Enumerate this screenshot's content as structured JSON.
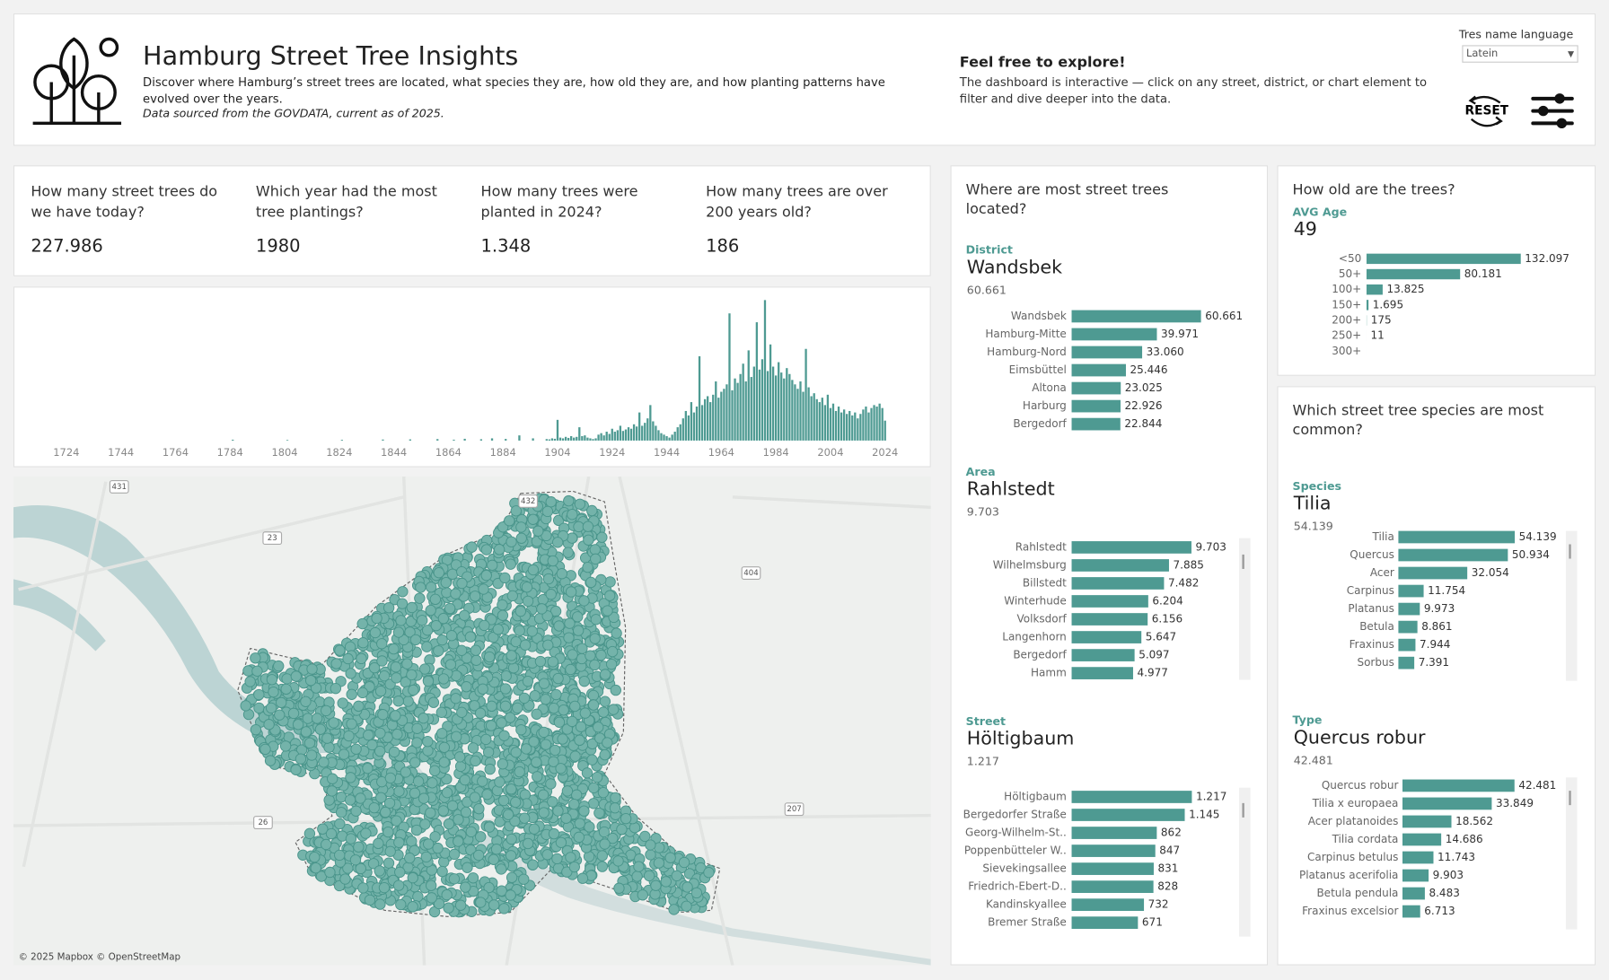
{
  "header": {
    "title": "Hamburg Street Tree Insights",
    "description": "Discover where Hamburg’s street trees are located, what species they are, how old they are, and how planting patterns have evolved over the years.",
    "source": "Data sourced from the GOVDATA, current as of 2025.",
    "explore_title": "Feel free to explore!",
    "explore_text": "The dashboard is interactive — click on any street, district, or chart element to filter and dive deeper into the data.",
    "language_label": "Tres name language",
    "language_value": "Latein",
    "reset_label": "RESET"
  },
  "kpis": [
    {
      "question": "How many street trees do we have today?",
      "value": "227.986"
    },
    {
      "question": "Which year had the most tree plantings?",
      "value": "1980"
    },
    {
      "question": "How many trees were planted in 2024?",
      "value": "1.348"
    },
    {
      "question": "How many trees are over 200 years old?",
      "value": "186"
    }
  ],
  "map": {
    "attribution": "© 2025 Mapbox © OpenStreetMap",
    "road_labels": [
      "431",
      "432",
      "23",
      "404",
      "26",
      "207"
    ]
  },
  "chart_data": [
    {
      "type": "bar",
      "color": "#4e9a92",
      "x": [
        1785,
        1805,
        1825,
        1840,
        1850,
        1860,
        1866,
        1870,
        1876,
        1880,
        1885,
        1890,
        1895,
        1900,
        1901,
        1902,
        1903,
        1904,
        1905,
        1906,
        1907,
        1908,
        1909,
        1910,
        1911,
        1912,
        1913,
        1914,
        1915,
        1916,
        1917,
        1918,
        1919,
        1920,
        1921,
        1922,
        1923,
        1924,
        1925,
        1926,
        1927,
        1928,
        1929,
        1930,
        1931,
        1932,
        1933,
        1934,
        1935,
        1936,
        1937,
        1938,
        1939,
        1940,
        1941,
        1942,
        1943,
        1944,
        1945,
        1946,
        1947,
        1948,
        1949,
        1950,
        1951,
        1952,
        1953,
        1954,
        1955,
        1956,
        1957,
        1958,
        1959,
        1960,
        1961,
        1962,
        1963,
        1964,
        1965,
        1966,
        1967,
        1968,
        1969,
        1970,
        1971,
        1972,
        1973,
        1974,
        1975,
        1976,
        1977,
        1978,
        1979,
        1980,
        1981,
        1982,
        1983,
        1984,
        1985,
        1986,
        1987,
        1988,
        1989,
        1990,
        1991,
        1992,
        1993,
        1994,
        1995,
        1996,
        1997,
        1998,
        1999,
        2000,
        2001,
        2002,
        2003,
        2004,
        2005,
        2006,
        2007,
        2008,
        2009,
        2010,
        2011,
        2012,
        2013,
        2014,
        2015,
        2016,
        2017,
        2018,
        2019,
        2020,
        2021,
        2022,
        2023,
        2024
      ],
      "values": [
        60,
        40,
        50,
        70,
        80,
        100,
        60,
        120,
        90,
        150,
        110,
        350,
        150,
        100,
        80,
        150,
        120,
        1400,
        200,
        150,
        250,
        180,
        300,
        200,
        250,
        900,
        300,
        350,
        200,
        150,
        100,
        150,
        400,
        500,
        350,
        600,
        450,
        800,
        600,
        700,
        1000,
        650,
        750,
        900,
        800,
        1100,
        950,
        1900,
        1000,
        1200,
        1500,
        2400,
        1300,
        1000,
        700,
        500,
        400,
        300,
        200,
        400,
        600,
        900,
        1100,
        1500,
        2000,
        1700,
        2600,
        1900,
        2300,
        5700,
        2400,
        2800,
        3000,
        2600,
        3100,
        4000,
        2900,
        3300,
        3500,
        3800,
        8600,
        3400,
        4200,
        3900,
        4500,
        5200,
        4000,
        6100,
        4300,
        5000,
        8000,
        4800,
        5500,
        9500,
        4700,
        6500,
        5000,
        4400,
        5300,
        4600,
        4200,
        4900,
        4500,
        4100,
        3800,
        3500,
        4000,
        3300,
        6200,
        3600,
        3000,
        3200,
        2800,
        2600,
        2900,
        2400,
        3100,
        2200,
        2500,
        2000,
        2300,
        1900,
        2100,
        1800,
        2000,
        1700,
        1900,
        1500,
        1800,
        2100,
        2300,
        1900,
        2200,
        2400,
        2300,
        2500,
        2200,
        1348
      ],
      "xlim": [
        1711,
        2031
      ],
      "xticks": [
        1724,
        1744,
        1764,
        1784,
        1804,
        1824,
        1844,
        1864,
        1884,
        1904,
        1924,
        1944,
        1964,
        1984,
        2004,
        2024
      ],
      "ylim": [
        0,
        10000
      ]
    },
    {
      "type": "hbar",
      "title": "Where are most street trees located?",
      "field": "District",
      "selected": "Wandsbek",
      "selected_value": "60.661",
      "color": "#4e9a92",
      "categories": [
        "Wandsbek",
        "Hamburg-Mitte",
        "Hamburg-Nord",
        "Eimsbüttel",
        "Altona",
        "Harburg",
        "Bergedorf"
      ],
      "values": [
        60661,
        39971,
        33060,
        25446,
        23025,
        22926,
        22844
      ],
      "value_labels": [
        "60.661",
        "39.971",
        "33.060",
        "25.446",
        "23.025",
        "22.926",
        "22.844"
      ],
      "xlim": [
        0,
        66000
      ]
    },
    {
      "type": "hbar",
      "field": "Area",
      "selected": "Rahlstedt",
      "selected_value": "9.703",
      "color": "#4e9a92",
      "categories": [
        "Rahlstedt",
        "Wilhelmsburg",
        "Billstedt",
        "Winterhude",
        "Volksdorf",
        "Langenhorn",
        "Bergedorf",
        "Hamm"
      ],
      "values": [
        9703,
        7885,
        7482,
        6204,
        6156,
        5647,
        5097,
        4977
      ],
      "value_labels": [
        "9.703",
        "7.885",
        "7.482",
        "6.204",
        "6.156",
        "5.647",
        "5.097",
        "4.977"
      ],
      "xlim": [
        0,
        11400
      ]
    },
    {
      "type": "hbar",
      "field": "Street",
      "selected": "Höltigbaum",
      "selected_value": "1.217",
      "color": "#4e9a92",
      "categories": [
        "Höltigbaum",
        "Bergedorfer Straße",
        "Georg-Wilhelm-St..",
        "Poppenbütteler W..",
        "Sievekingsallee",
        "Friedrich-Ebert-D..",
        "Kandinskyallee",
        "Bremer Straße"
      ],
      "values": [
        1217,
        1145,
        862,
        847,
        831,
        828,
        732,
        671
      ],
      "value_labels": [
        "1.217",
        "1.145",
        "862",
        "847",
        "831",
        "828",
        "732",
        "671"
      ],
      "xlim": [
        0,
        1425
      ]
    },
    {
      "type": "hbar",
      "title": "How old are the trees?",
      "field": "AVG Age",
      "selected": "49",
      "color": "#4e9a92",
      "categories": [
        "<50",
        "50+",
        "100+",
        "150+",
        "200+",
        "250+",
        "300+"
      ],
      "values": [
        132097,
        80181,
        13825,
        1695,
        175,
        11,
        2
      ],
      "value_labels": [
        "132.097",
        "80.181",
        "13.825",
        "1.695",
        "175",
        "11",
        null
      ],
      "xlim": [
        0,
        176000
      ]
    },
    {
      "type": "hbar",
      "title": "Which street tree species are most common?",
      "field": "Species",
      "selected": "Tilia",
      "selected_value": "54.139",
      "color": "#4e9a92",
      "categories": [
        "Tilia",
        "Quercus",
        "Acer",
        "Carpinus",
        "Platanus",
        "Betula",
        "Fraxinus",
        "Sorbus"
      ],
      "values": [
        54139,
        50934,
        32054,
        11754,
        9973,
        8861,
        7944,
        7391
      ],
      "value_labels": [
        "54.139",
        "50.934",
        "32.054",
        "11.754",
        "9.973",
        "8.861",
        "7.944",
        "7.391"
      ],
      "xlim": [
        0,
        76000
      ]
    },
    {
      "type": "hbar",
      "field": "Type",
      "selected": "Quercus robur",
      "selected_value": "42.481",
      "color": "#4e9a92",
      "categories": [
        "Quercus robur",
        "Tilia x europaea",
        "Acer platanoides",
        "Tilia cordata",
        "Carpinus betulus",
        "Platanus acerifolia",
        "Betula pendula",
        "Fraxinus excelsior"
      ],
      "values": [
        42481,
        33849,
        18562,
        14686,
        11743,
        9903,
        8483,
        6713
      ],
      "value_labels": [
        "42.481",
        "33.849",
        "18.562",
        "14.686",
        "11.743",
        "9.903",
        "8.483",
        "6.713"
      ],
      "xlim": [
        0,
        60400
      ]
    }
  ]
}
